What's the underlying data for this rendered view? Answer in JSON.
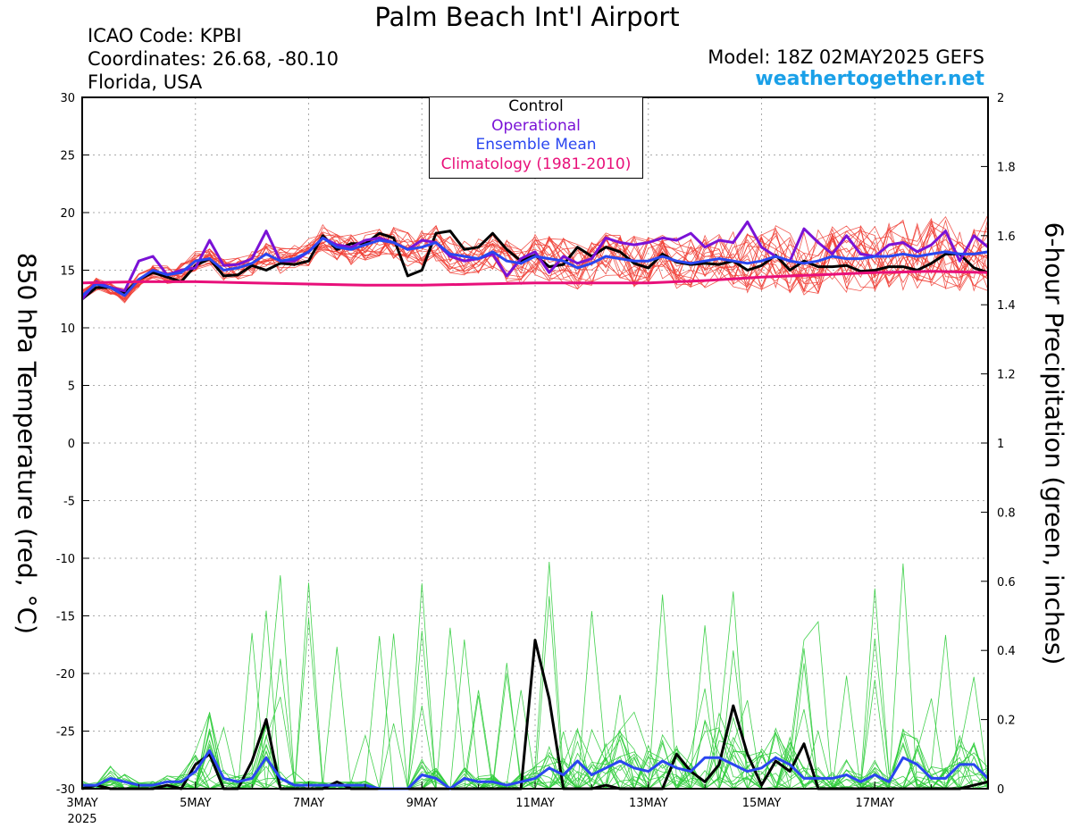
{
  "header": {
    "title": "Palm Beach Int'l Airport",
    "icao": "ICAO Code: KPBI",
    "coordinates": "Coordinates: 26.68, -80.10",
    "region": "Florida, USA",
    "model": "Model: 18Z 02MAY2025 GEFS",
    "site": "weathertogether.net"
  },
  "legend": {
    "control": "Control",
    "operational": "Operational",
    "mean": "Ensemble Mean",
    "climo": "Climatology (1981-2010)"
  },
  "colors": {
    "control": "#000000",
    "operational": "#7a12d6",
    "mean": "#2a46f0",
    "climo": "#e8107a",
    "members_temp": "#f03c32",
    "members_precip": "#2ecc3a",
    "site": "#1aa0e8"
  },
  "chart_data": {
    "type": "line",
    "left_axis": {
      "label": "850 hPa Temperature (red, °C)",
      "min": -30,
      "max": 30,
      "ticks": [
        "30",
        "25",
        "20",
        "15",
        "10",
        "5",
        "0",
        "-5",
        "-10",
        "-15",
        "-20",
        "-25",
        "-30"
      ]
    },
    "right_axis": {
      "label": "6-hour Precipitation (green, inches)",
      "min": 0,
      "max": 2,
      "ticks": [
        "2",
        "1.8",
        "1.6",
        "1.4",
        "1.2",
        "1",
        "0.8",
        "0.6",
        "0.4",
        "0.2",
        "0"
      ]
    },
    "x_axis": {
      "start_day": 3,
      "end_day": 19,
      "tick_labels": [
        "3MAY",
        "5MAY",
        "7MAY",
        "9MAY",
        "11MAY",
        "13MAY",
        "15MAY",
        "17MAY"
      ],
      "tick_days": [
        3,
        5,
        7,
        9,
        11,
        13,
        15,
        17
      ],
      "year_label": "2025"
    },
    "grid": true,
    "legend_position": "top-center",
    "temperature_series": [
      {
        "name": "Control",
        "x": [
          3,
          3.25,
          3.5,
          3.75,
          4,
          4.25,
          4.5,
          4.75,
          5,
          5.25,
          5.5,
          5.75,
          6,
          6.25,
          6.5,
          6.75,
          7,
          7.25,
          7.5,
          7.75,
          8,
          8.25,
          8.5,
          8.75,
          9,
          9.25,
          9.5,
          9.75,
          10,
          10.25,
          10.5,
          10.75,
          11,
          11.25,
          11.5,
          11.75,
          12,
          12.25,
          12.5,
          12.75,
          13,
          13.25,
          13.5,
          13.75,
          14,
          14.25,
          14.5,
          14.75,
          15,
          15.25,
          15.5,
          15.75,
          16,
          16.25,
          16.5,
          16.75,
          17,
          17.25,
          17.5,
          17.75,
          18,
          18.25,
          18.5,
          18.75,
          19
        ],
        "y": [
          12.5,
          13.5,
          13.5,
          13.0,
          14.2,
          14.8,
          14.4,
          14.0,
          15.4,
          16.0,
          14.5,
          14.6,
          15.4,
          15.0,
          15.6,
          15.5,
          15.8,
          18.0,
          16.8,
          17.3,
          17.3,
          18.2,
          17.8,
          14.5,
          15.0,
          18.2,
          18.4,
          16.8,
          17.0,
          18.2,
          16.8,
          15.8,
          16.3,
          15.3,
          15.5,
          17.0,
          16.2,
          17.0,
          16.6,
          15.6,
          15.2,
          16.4,
          15.7,
          15.5,
          15.6,
          15.5,
          15.8,
          15.0,
          15.4,
          16.3,
          15.0,
          15.8,
          15.3,
          15.3,
          15.4,
          14.9,
          15.0,
          15.3,
          15.3,
          15.0,
          15.6,
          16.4,
          16.4,
          15.2,
          14.8
        ]
      },
      {
        "name": "Operational",
        "x": [
          3,
          3.25,
          3.5,
          3.75,
          4,
          4.25,
          4.5,
          4.75,
          5,
          5.25,
          5.5,
          5.75,
          6,
          6.25,
          6.5,
          6.75,
          7,
          7.25,
          7.5,
          7.75,
          8,
          8.25,
          8.5,
          8.75,
          9,
          9.25,
          9.5,
          9.75,
          10,
          10.25,
          10.5,
          10.75,
          11,
          11.25,
          11.5,
          11.75,
          12,
          12.25,
          12.5,
          12.75,
          13,
          13.25,
          13.5,
          13.75,
          14,
          14.25,
          14.5,
          14.75,
          15,
          15.25,
          15.5,
          15.75,
          16,
          16.25,
          16.5,
          16.75,
          17,
          17.25,
          17.5,
          17.75,
          18,
          18.25,
          18.5,
          18.75,
          19
        ],
        "y": [
          12.5,
          14.0,
          13.5,
          13.2,
          15.8,
          16.2,
          14.6,
          15.0,
          15.2,
          17.6,
          15.4,
          15.5,
          16.0,
          18.4,
          15.8,
          15.8,
          16.6,
          17.8,
          17.2,
          17.0,
          17.6,
          17.8,
          17.4,
          16.8,
          17.6,
          17.4,
          16.2,
          15.8,
          16.0,
          16.4,
          14.5,
          16.0,
          16.6,
          14.8,
          16.2,
          15.6,
          16.0,
          17.8,
          17.4,
          17.2,
          17.4,
          17.8,
          17.6,
          18.2,
          17.0,
          17.6,
          17.4,
          19.2,
          17.0,
          16.2,
          15.8,
          18.6,
          17.4,
          16.4,
          18.0,
          16.4,
          16.2,
          17.2,
          17.4,
          16.6,
          17.2,
          18.4,
          15.8,
          18.0,
          17.0
        ]
      },
      {
        "name": "Ensemble Mean",
        "x": [
          3,
          3.25,
          3.5,
          3.75,
          4,
          4.25,
          4.5,
          4.75,
          5,
          5.25,
          5.5,
          5.75,
          6,
          6.25,
          6.5,
          6.75,
          7,
          7.25,
          7.5,
          7.75,
          8,
          8.25,
          8.5,
          8.75,
          9,
          9.25,
          9.5,
          9.75,
          10,
          10.25,
          10.5,
          10.75,
          11,
          11.25,
          11.5,
          11.75,
          12,
          12.25,
          12.5,
          12.75,
          13,
          13.25,
          13.5,
          13.75,
          14,
          14.25,
          14.5,
          14.75,
          15,
          15.25,
          15.5,
          15.75,
          16,
          16.25,
          16.5,
          16.75,
          17,
          17.25,
          17.5,
          17.75,
          18,
          18.25,
          18.5,
          18.75,
          19
        ],
        "y": [
          12.8,
          13.8,
          13.5,
          12.8,
          14.2,
          15.0,
          14.6,
          14.8,
          15.8,
          16.0,
          15.0,
          15.2,
          15.6,
          16.4,
          15.8,
          16.0,
          16.6,
          17.8,
          17.0,
          16.8,
          17.2,
          17.6,
          17.4,
          16.8,
          17.0,
          17.4,
          16.4,
          16.2,
          16.0,
          16.6,
          15.8,
          15.6,
          16.2,
          16.0,
          15.8,
          15.2,
          15.6,
          16.2,
          16.0,
          15.8,
          15.8,
          16.2,
          15.8,
          15.6,
          15.8,
          16.0,
          15.8,
          15.6,
          15.8,
          16.2,
          15.8,
          15.6,
          15.8,
          16.2,
          16.0,
          16.0,
          16.2,
          16.2,
          16.4,
          16.2,
          16.4,
          16.6,
          16.4,
          16.4,
          16.6
        ]
      },
      {
        "name": "Climatology (1981-2010)",
        "x": [
          3,
          4,
          5,
          6,
          7,
          8,
          9,
          10,
          11,
          12,
          13,
          14,
          15,
          16,
          17,
          18,
          19
        ],
        "y": [
          13.9,
          14.0,
          14.0,
          13.9,
          13.8,
          13.7,
          13.7,
          13.8,
          13.9,
          13.9,
          13.9,
          14.1,
          14.4,
          14.6,
          14.8,
          14.9,
          14.8
        ]
      }
    ],
    "precipitation_series": [
      {
        "name": "Control",
        "x": [
          3,
          3.25,
          3.5,
          3.75,
          4,
          4.25,
          4.5,
          4.75,
          5,
          5.25,
          5.5,
          5.75,
          6,
          6.25,
          6.5,
          6.75,
          7,
          7.25,
          7.5,
          7.75,
          8,
          8.25,
          8.5,
          8.75,
          9,
          9.25,
          9.5,
          9.75,
          10,
          10.25,
          10.5,
          10.75,
          11,
          11.25,
          11.5,
          11.75,
          12,
          12.25,
          12.5,
          12.75,
          13,
          13.25,
          13.5,
          13.75,
          14,
          14.25,
          14.5,
          14.75,
          15,
          15.25,
          15.5,
          15.75,
          16,
          16.25,
          16.5,
          16.75,
          17,
          17.25,
          17.5,
          17.75,
          18,
          18.25,
          18.5,
          18.75,
          19
        ],
        "y": [
          0,
          0.01,
          0,
          0,
          0,
          0,
          0.01,
          0,
          0.07,
          0.1,
          0,
          0,
          0.08,
          0.2,
          0,
          0,
          0,
          0,
          0.02,
          0,
          0,
          0,
          0,
          0,
          0,
          0,
          0,
          0,
          0,
          0,
          0,
          0,
          0.43,
          0.26,
          0,
          0,
          0,
          0.01,
          0,
          0,
          0,
          0,
          0.1,
          0.05,
          0.02,
          0.07,
          0.24,
          0.1,
          0.01,
          0.08,
          0.05,
          0.13,
          0,
          0,
          0,
          0,
          0,
          0,
          0,
          0,
          0,
          0,
          0,
          0.01,
          0.02
        ]
      },
      {
        "name": "Ensemble Mean",
        "x": [
          3,
          3.25,
          3.5,
          3.75,
          4,
          4.25,
          4.5,
          4.75,
          5,
          5.25,
          5.5,
          5.75,
          6,
          6.25,
          6.5,
          6.75,
          7,
          7.25,
          7.5,
          7.75,
          8,
          8.25,
          8.5,
          8.75,
          9,
          9.25,
          9.5,
          9.75,
          10,
          10.25,
          10.5,
          10.75,
          11,
          11.25,
          11.5,
          11.75,
          12,
          12.25,
          12.5,
          12.75,
          13,
          13.25,
          13.5,
          13.75,
          14,
          14.25,
          14.5,
          14.75,
          15,
          15.25,
          15.5,
          15.75,
          16,
          16.25,
          16.5,
          16.75,
          17,
          17.25,
          17.5,
          17.75,
          18,
          18.25,
          18.5,
          18.75,
          19
        ],
        "y": [
          0.01,
          0.01,
          0.03,
          0.02,
          0.01,
          0.01,
          0.02,
          0.02,
          0.05,
          0.11,
          0.03,
          0.02,
          0.03,
          0.09,
          0.03,
          0.01,
          0.01,
          0.01,
          0.01,
          0.01,
          0.01,
          0,
          0,
          0,
          0.04,
          0.03,
          0,
          0.03,
          0.02,
          0.02,
          0.01,
          0.02,
          0.03,
          0.06,
          0.04,
          0.08,
          0.04,
          0.06,
          0.08,
          0.06,
          0.05,
          0.08,
          0.06,
          0.05,
          0.09,
          0.09,
          0.07,
          0.05,
          0.06,
          0.09,
          0.07,
          0.03,
          0.03,
          0.03,
          0.04,
          0.02,
          0.04,
          0.02,
          0.09,
          0.07,
          0.03,
          0.03,
          0.07,
          0.07,
          0.03
        ]
      }
    ]
  }
}
